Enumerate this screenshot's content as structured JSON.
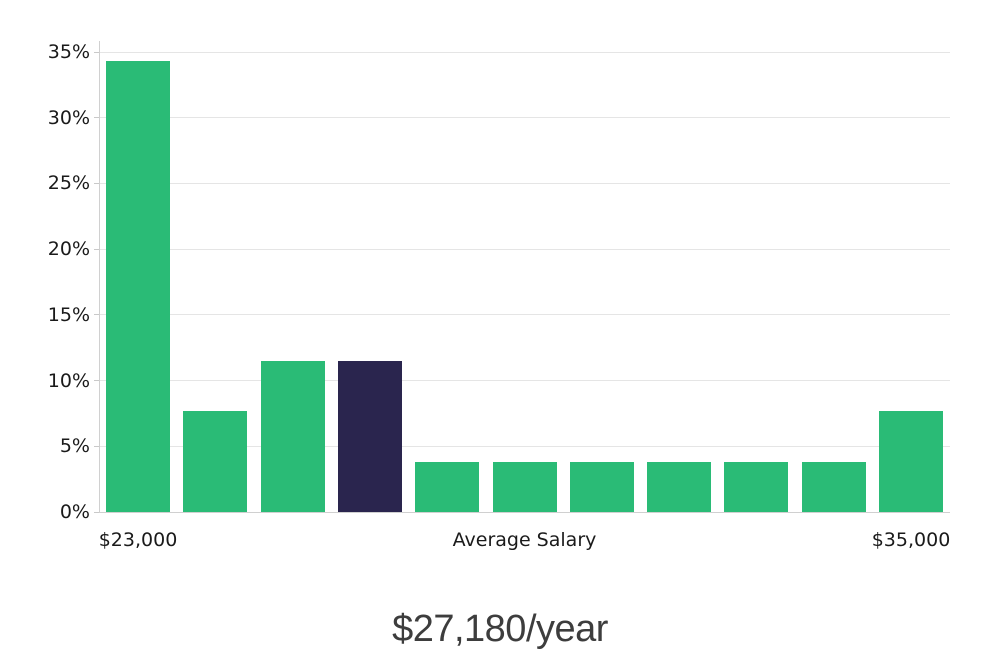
{
  "chart_data": {
    "type": "bar",
    "title": "$27,180/year",
    "xlabel": "Average Salary",
    "x_tick_labels": [
      "$23,000",
      "$35,000"
    ],
    "y_ticks": [
      0,
      5,
      10,
      15,
      20,
      25,
      30,
      35
    ],
    "y_tick_labels": [
      "0%",
      "5%",
      "10%",
      "15%",
      "20%",
      "25%",
      "30%",
      "35%"
    ],
    "ylim": [
      0,
      35
    ],
    "values": [
      34.3,
      7.7,
      11.5,
      11.5,
      3.8,
      3.8,
      3.8,
      3.8,
      3.8,
      3.8,
      7.7
    ],
    "highlight_index": 3,
    "grid": true,
    "legend_position": "none",
    "colors": {
      "bar": "#2abb76",
      "highlight": "#2a254e",
      "gridline": "#e5e5e5",
      "axis": "#d0d0d0",
      "tick_text": "#1a1a1a",
      "title_text": "#3d3d3d"
    }
  }
}
